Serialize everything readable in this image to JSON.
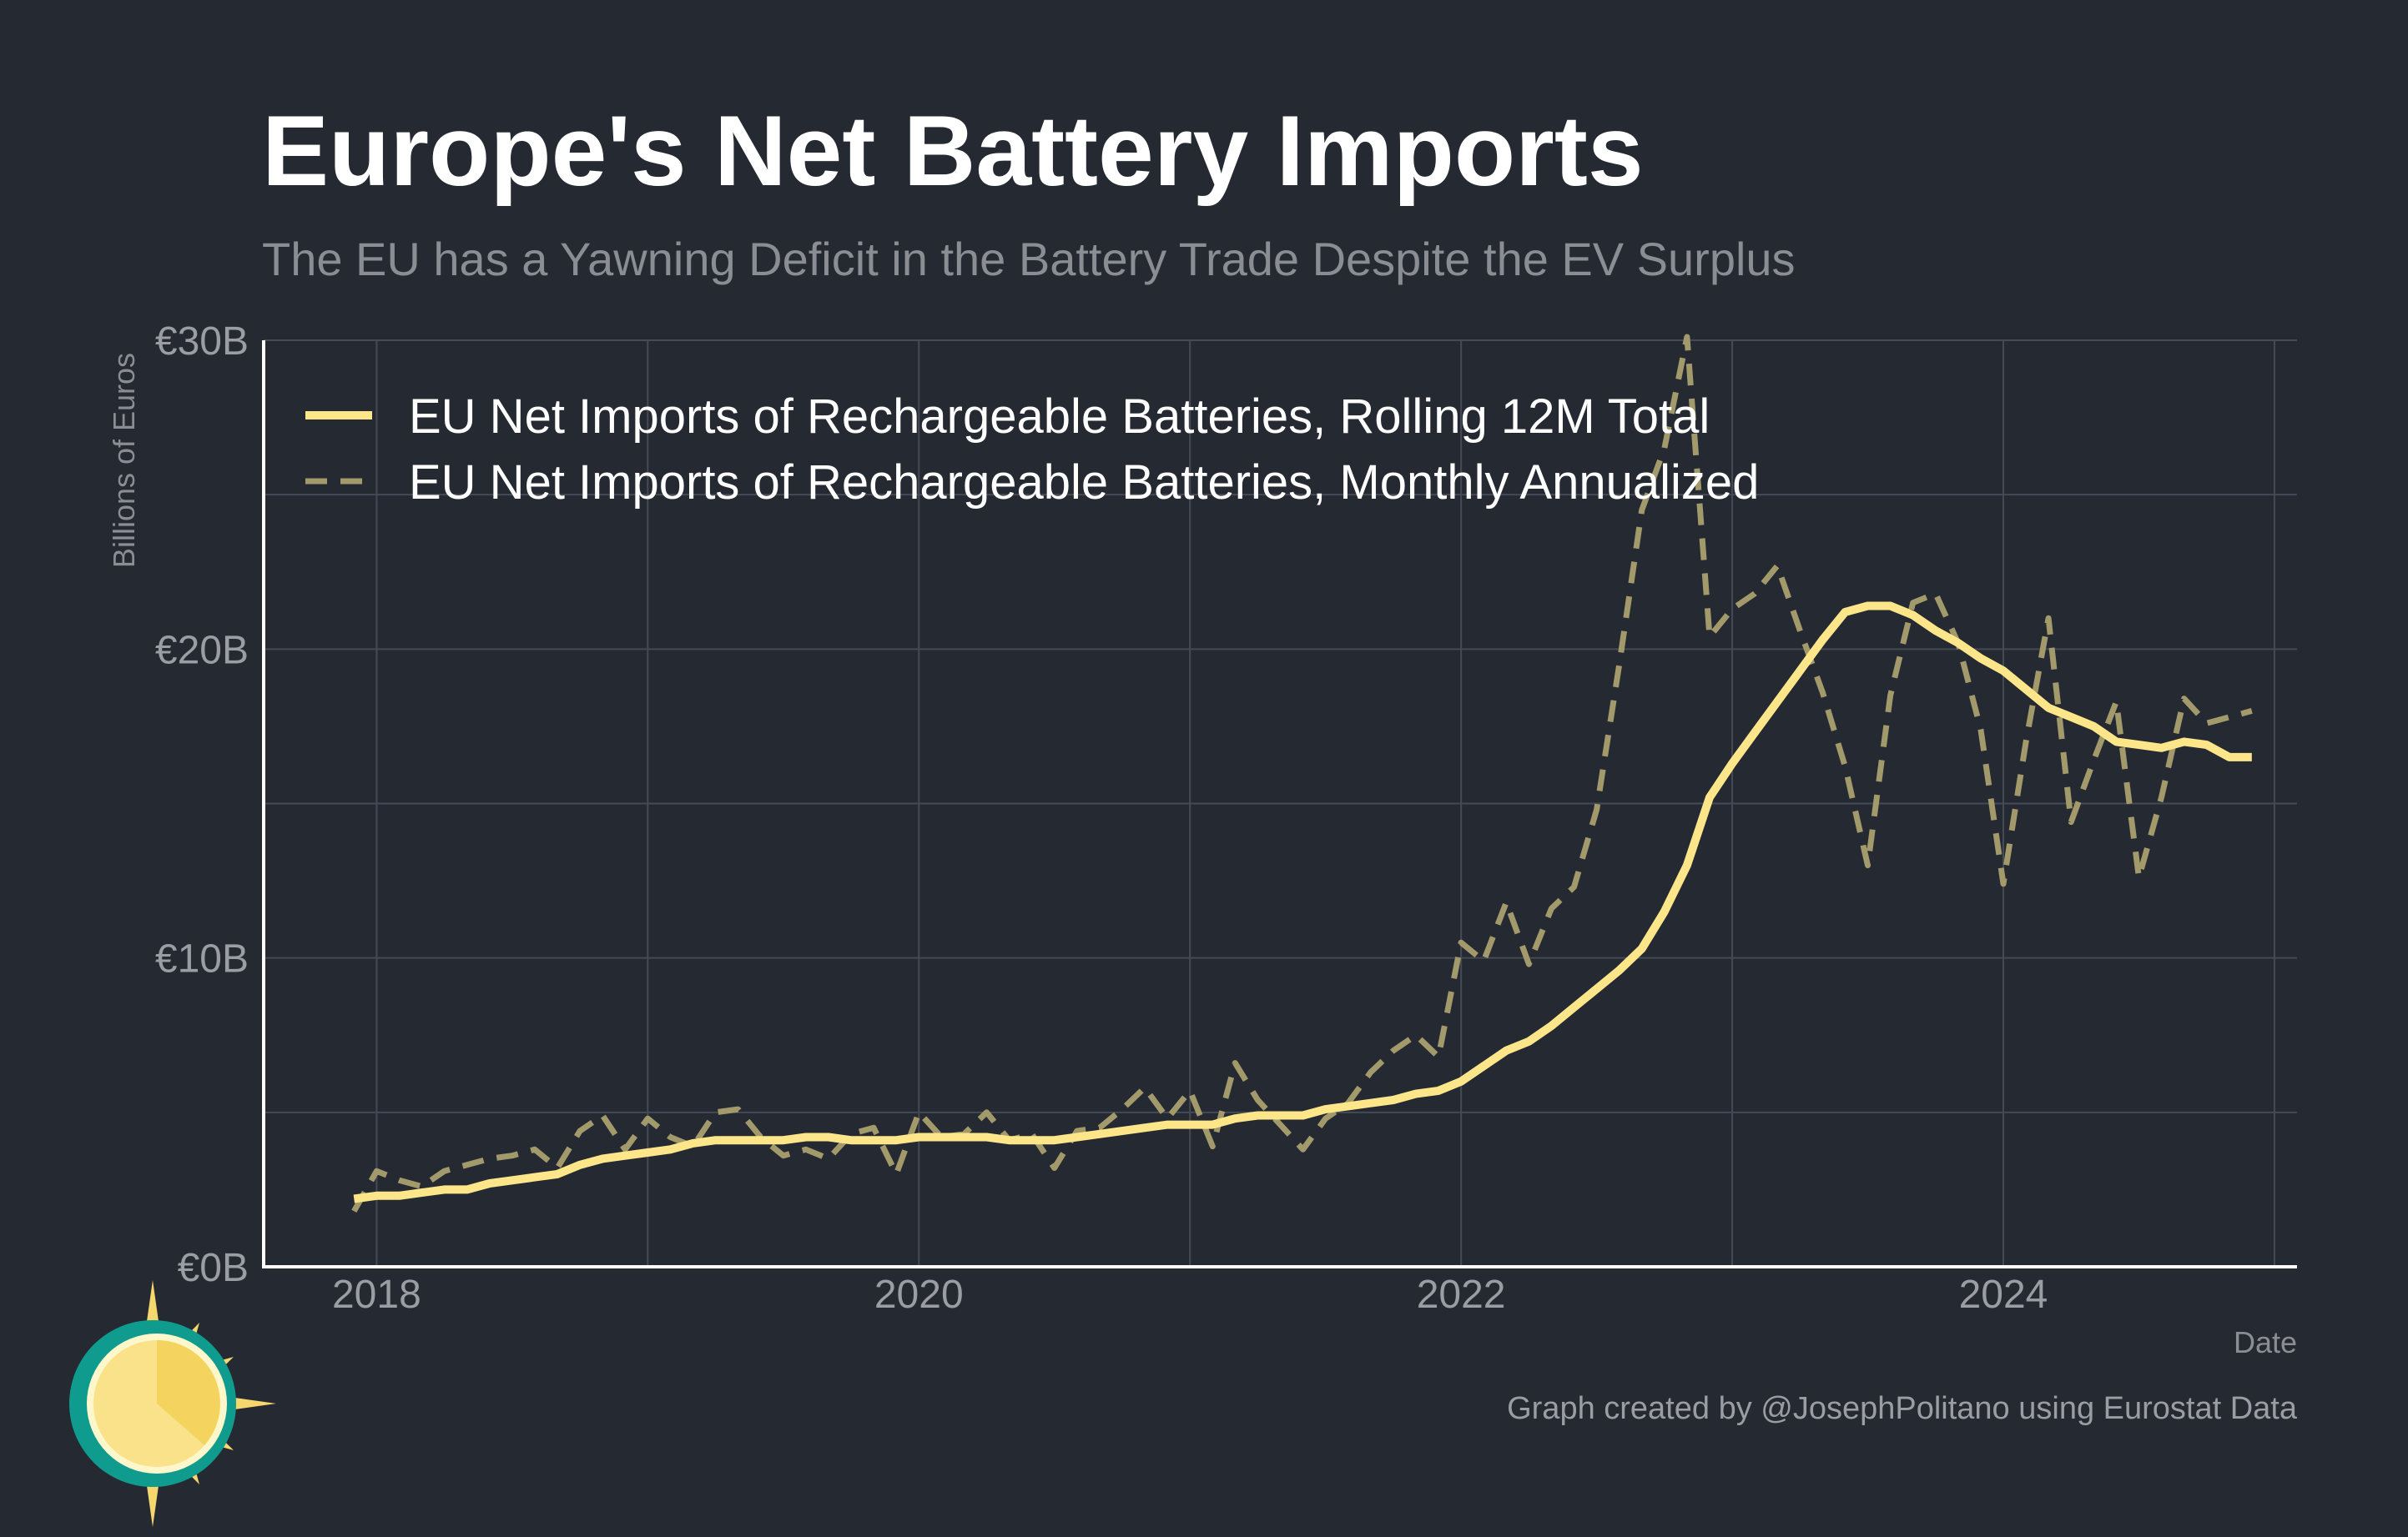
{
  "chart": {
    "title": "Europe's Net Battery Imports",
    "subtitle": "The EU has a Yawning Deficit in the Battery Trade Despite the EV Surplus",
    "ylabel": "Billions of Euros",
    "xlabel": "Date",
    "credit": "Graph created by @JosephPolitano using Eurostat Data",
    "ytick_labels": [
      "€0B",
      "€10B",
      "€20B",
      "€30B"
    ],
    "xtick_labels": [
      "2018",
      "2020",
      "2022",
      "2024"
    ]
  },
  "colors": {
    "background": "#252932",
    "rolling": "#fde68a",
    "monthly": "#a39a6c",
    "grid": "#454a55",
    "axis": "#ffffff",
    "logo_teal": "#0f9b8e",
    "logo_sun": "#f5d76e"
  },
  "logo": {
    "icon": "sun-logo-icon"
  },
  "chart_data": {
    "type": "line",
    "title": "Europe's Net Battery Imports",
    "subtitle": "The EU has a Yawning Deficit in the Battery Trade Despite the EV Surplus",
    "xlabel": "Date",
    "ylabel": "Billions of Euros",
    "y_unit": "billion EUR",
    "xlim": [
      "2017-08",
      "2025-02"
    ],
    "ylim": [
      0,
      30
    ],
    "yticks": [
      0,
      10,
      20,
      30
    ],
    "xticks": [
      "2018",
      "2020",
      "2022",
      "2024"
    ],
    "grid": true,
    "legend_position": "top-left",
    "x": [
      "2017-12",
      "2018-01",
      "2018-02",
      "2018-03",
      "2018-04",
      "2018-05",
      "2018-06",
      "2018-07",
      "2018-08",
      "2018-09",
      "2018-10",
      "2018-11",
      "2018-12",
      "2019-01",
      "2019-02",
      "2019-03",
      "2019-04",
      "2019-05",
      "2019-06",
      "2019-07",
      "2019-08",
      "2019-09",
      "2019-10",
      "2019-11",
      "2019-12",
      "2020-01",
      "2020-02",
      "2020-03",
      "2020-04",
      "2020-05",
      "2020-06",
      "2020-07",
      "2020-08",
      "2020-09",
      "2020-10",
      "2020-11",
      "2020-12",
      "2021-01",
      "2021-02",
      "2021-03",
      "2021-04",
      "2021-05",
      "2021-06",
      "2021-07",
      "2021-08",
      "2021-09",
      "2021-10",
      "2021-11",
      "2021-12",
      "2022-01",
      "2022-02",
      "2022-03",
      "2022-04",
      "2022-05",
      "2022-06",
      "2022-07",
      "2022-08",
      "2022-09",
      "2022-10",
      "2022-11",
      "2022-12",
      "2023-01",
      "2023-02",
      "2023-03",
      "2023-04",
      "2023-05",
      "2023-06",
      "2023-07",
      "2023-08",
      "2023-09",
      "2023-10",
      "2023-11",
      "2023-12",
      "2024-01",
      "2024-02",
      "2024-03",
      "2024-04",
      "2024-05",
      "2024-06",
      "2024-07",
      "2024-08",
      "2024-09",
      "2024-10",
      "2024-11",
      "2024-12"
    ],
    "series": [
      {
        "name": "EU Net Imports of Rechargeable Batteries, Rolling 12M Total",
        "style": "solid",
        "values": [
          2.2,
          2.3,
          2.3,
          2.4,
          2.5,
          2.5,
          2.7,
          2.8,
          2.9,
          3.0,
          3.3,
          3.5,
          3.6,
          3.7,
          3.8,
          4.0,
          4.1,
          4.1,
          4.1,
          4.1,
          4.2,
          4.2,
          4.1,
          4.1,
          4.1,
          4.2,
          4.2,
          4.2,
          4.2,
          4.1,
          4.1,
          4.1,
          4.2,
          4.3,
          4.4,
          4.5,
          4.6,
          4.6,
          4.6,
          4.8,
          4.9,
          4.9,
          4.9,
          5.1,
          5.2,
          5.3,
          5.4,
          5.6,
          5.7,
          6.0,
          6.5,
          7.0,
          7.3,
          7.8,
          8.4,
          9.0,
          9.6,
          10.3,
          11.5,
          13.0,
          15.2,
          16.3,
          17.3,
          18.3,
          19.3,
          20.3,
          21.2,
          21.4,
          21.4,
          21.1,
          20.6,
          20.2,
          19.7,
          19.3,
          18.7,
          18.1,
          17.8,
          17.5,
          17.0,
          16.9,
          16.8,
          17.0,
          16.9,
          16.5,
          16.5
        ]
      },
      {
        "name": "EU Net Imports of Rechargeable Batteries, Monthly Annualized",
        "style": "dashed",
        "values": [
          1.8,
          3.1,
          2.8,
          2.6,
          3.1,
          3.3,
          3.5,
          3.6,
          3.8,
          3.2,
          4.4,
          4.9,
          3.8,
          4.8,
          4.2,
          3.9,
          5.0,
          5.1,
          4.2,
          3.6,
          3.8,
          3.5,
          4.3,
          4.5,
          3.0,
          5.0,
          4.2,
          4.3,
          5.0,
          4.1,
          4.3,
          3.2,
          4.4,
          4.5,
          5.1,
          5.8,
          4.8,
          5.7,
          3.9,
          6.6,
          5.4,
          4.6,
          3.8,
          4.8,
          5.3,
          6.3,
          7.0,
          7.5,
          6.8,
          10.5,
          9.9,
          11.8,
          9.8,
          11.6,
          12.3,
          14.8,
          19.5,
          24.5,
          26.5,
          30.2,
          20.4,
          21.3,
          21.8,
          22.7,
          20.6,
          18.6,
          16.2,
          13.0,
          18.5,
          21.5,
          21.8,
          20.2,
          17.4,
          12.4,
          17.0,
          21.0,
          14.4,
          16.4,
          18.3,
          12.6,
          15.2,
          18.4,
          17.6,
          17.8,
          18.0
        ]
      }
    ]
  }
}
